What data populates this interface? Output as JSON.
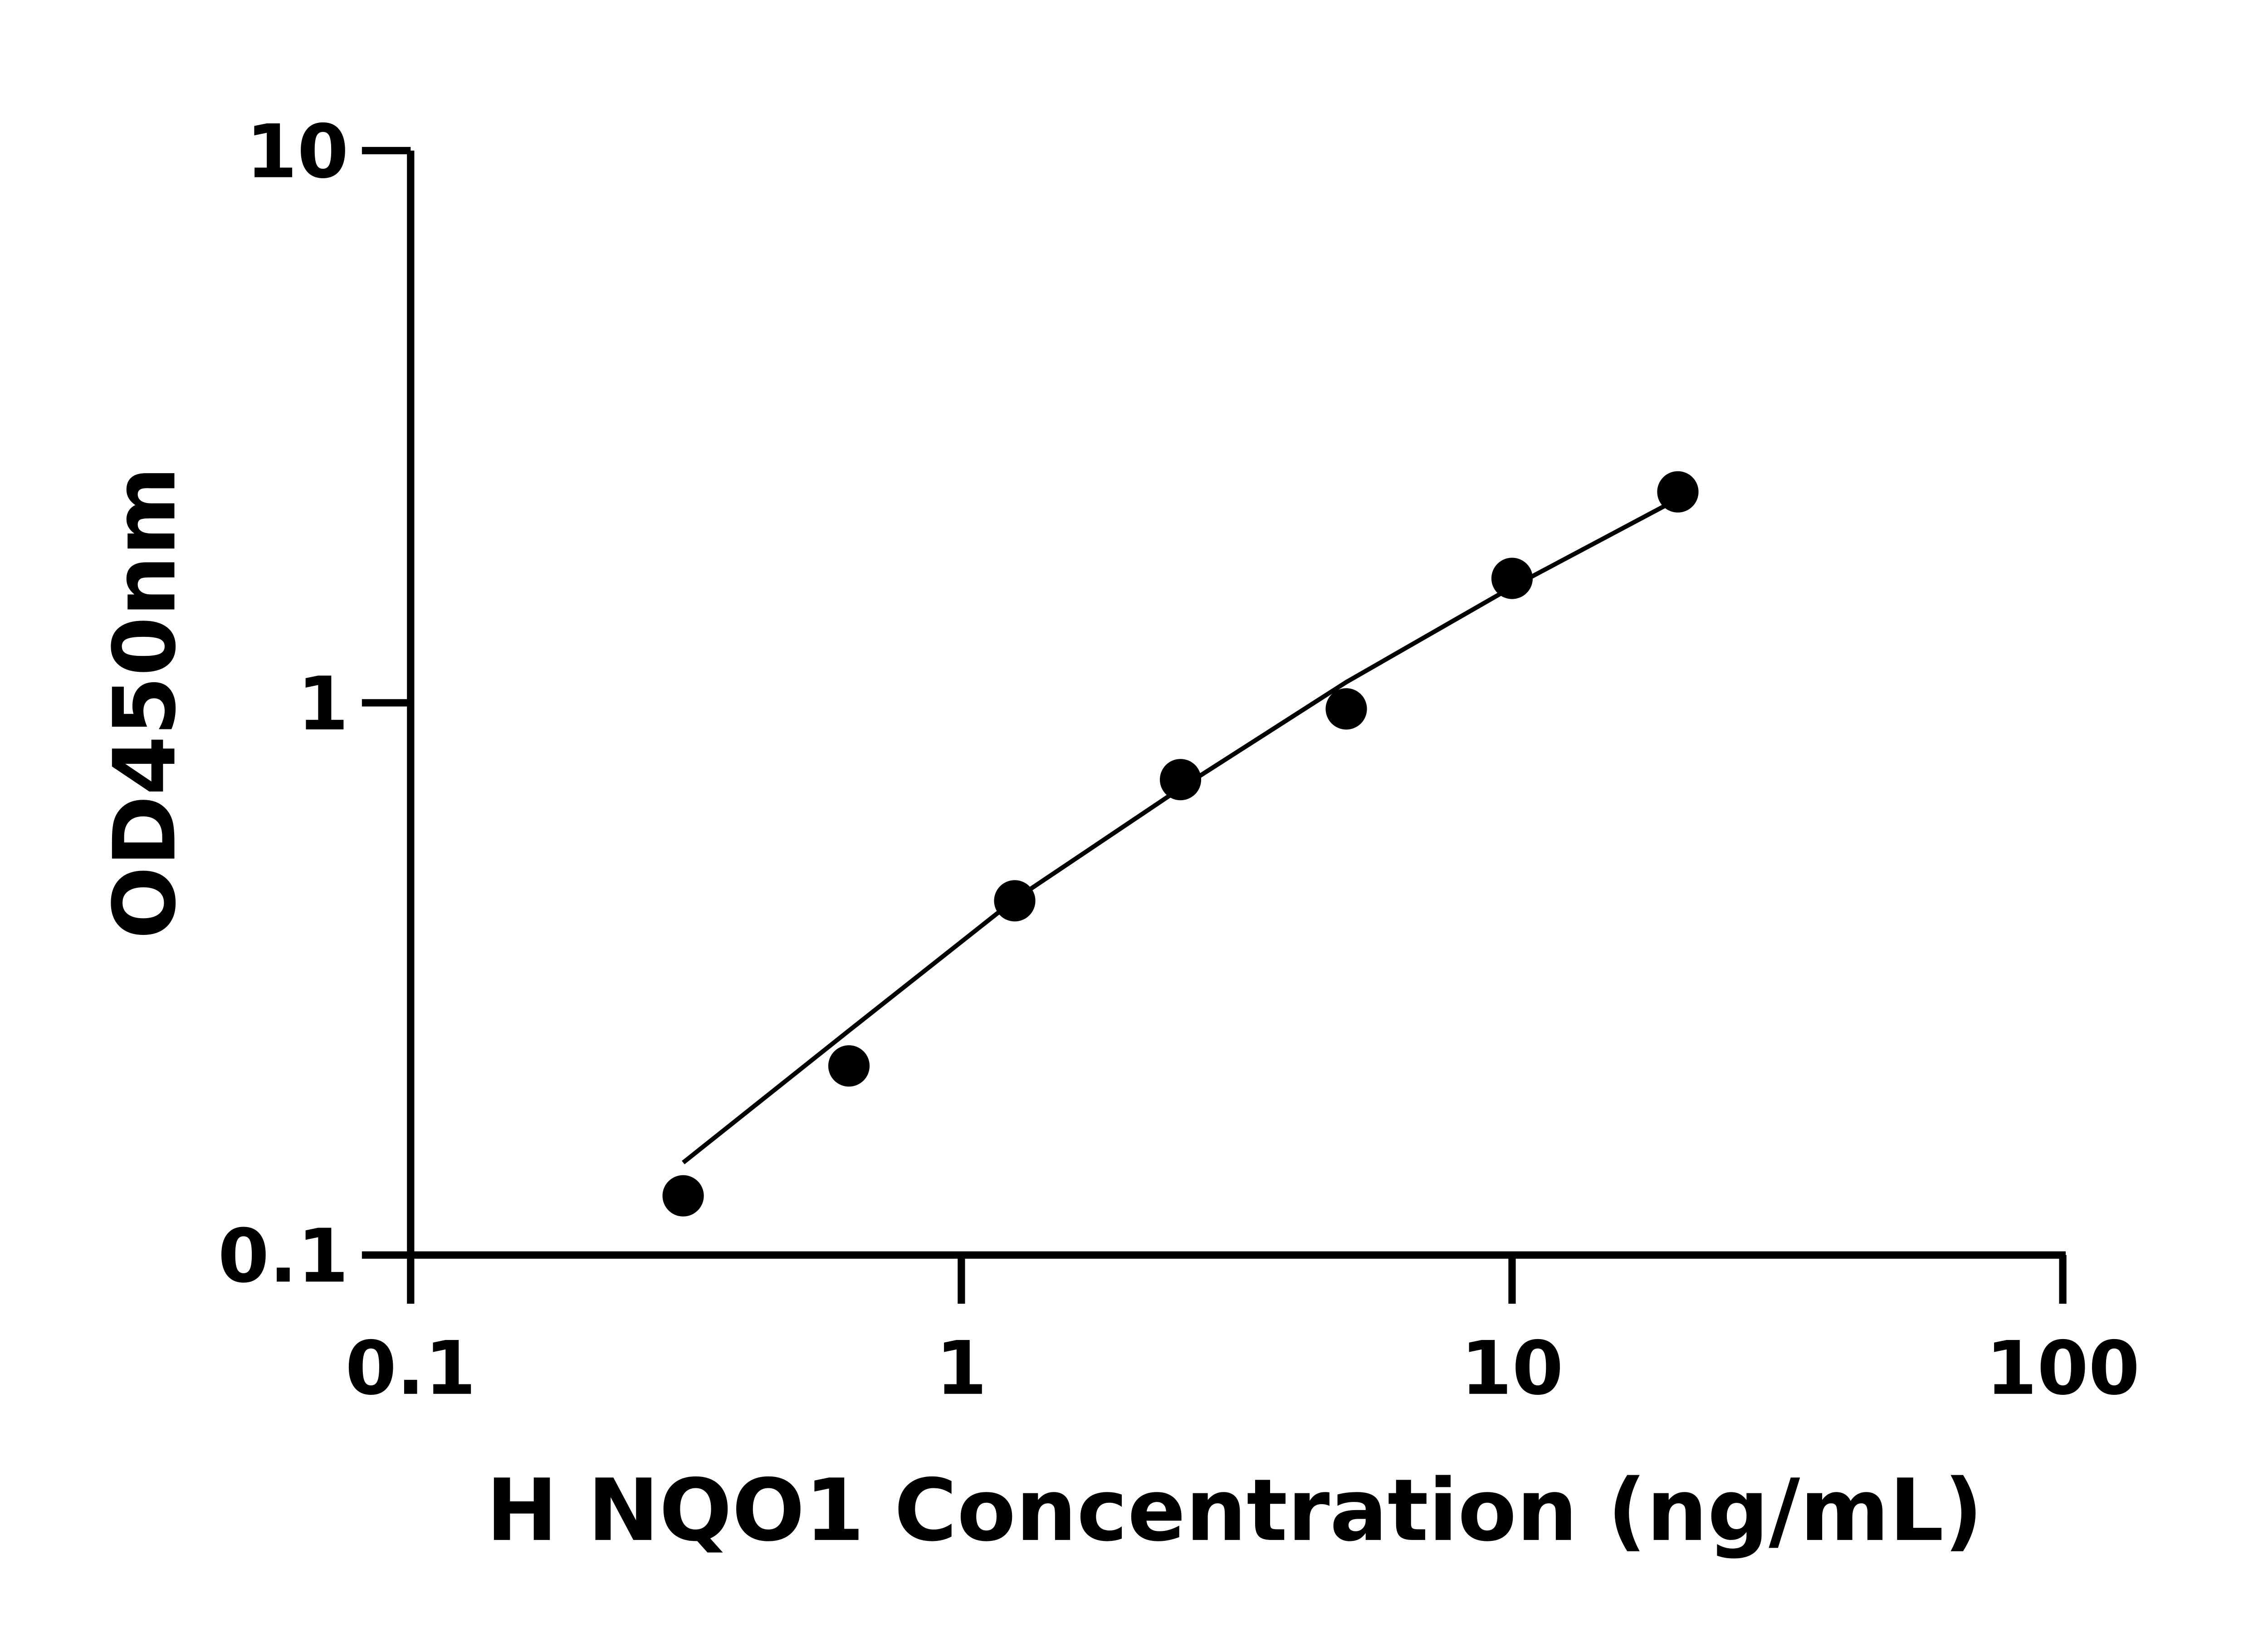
{
  "chart_data": {
    "type": "scatter",
    "title": "",
    "xlabel": "H NQO1 Concentration (ng/mL)",
    "ylabel": "OD450nm",
    "xscale": "log",
    "yscale": "log",
    "xlim": [
      0.1,
      100
    ],
    "ylim": [
      0.1,
      10
    ],
    "xticks": [
      "0.1",
      "1",
      "10",
      "100"
    ],
    "yticks": [
      "0.1",
      "1",
      "10"
    ],
    "grid": false,
    "legend": "none",
    "points": {
      "x": [
        0.3125,
        0.625,
        1.25,
        2.5,
        5,
        10,
        20
      ],
      "y": [
        0.128,
        0.22,
        0.438,
        0.726,
        0.975,
        1.68,
        2.41
      ]
    },
    "fit_curve": {
      "x": [
        0.3125,
        0.625,
        1.25,
        2.5,
        5,
        10,
        20
      ],
      "y": [
        0.147,
        0.255,
        0.44,
        0.7,
        1.09,
        1.62,
        2.34
      ]
    },
    "colors": {
      "points": "#000000",
      "line": "#000000",
      "axes": "#000000"
    }
  }
}
